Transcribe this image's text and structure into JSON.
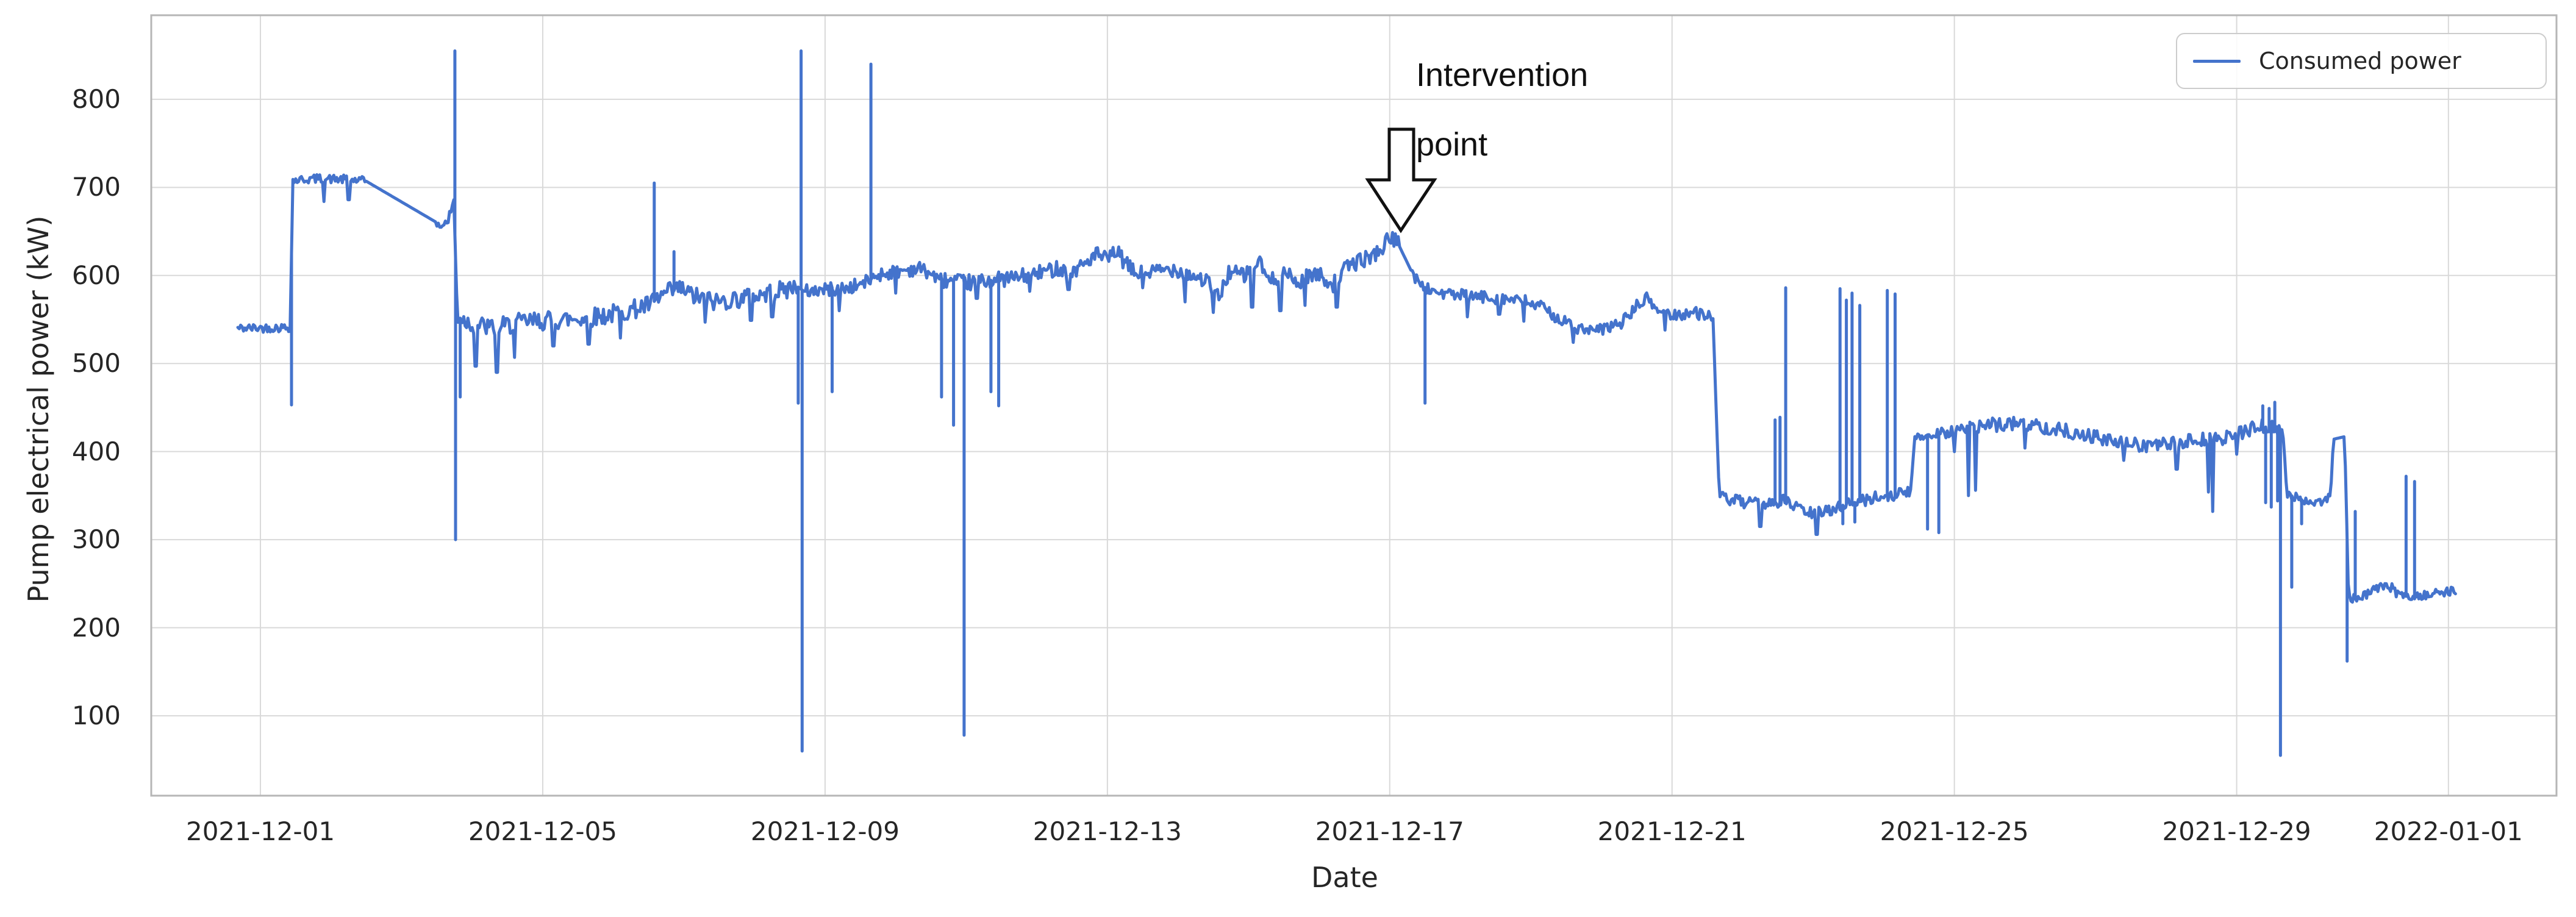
{
  "figure": {
    "background": "#ffffff",
    "grid_color": "#d9d9d9",
    "spine_color": "#b6b6b6",
    "text_color": "#262626"
  },
  "chart_data": {
    "type": "line",
    "title": "",
    "xlabel": "Date",
    "ylabel": "Pump electrical power (kW)",
    "legend": {
      "entries": [
        "Consumed power"
      ],
      "position": "upper right"
    },
    "grid": true,
    "x_epoch": "2021-12-01",
    "x_tick_labels": [
      "2021-12-01",
      "2021-12-05",
      "2021-12-09",
      "2021-12-13",
      "2021-12-17",
      "2021-12-21",
      "2021-12-25",
      "2021-12-29",
      "2022-01-01"
    ],
    "x_tick_days": [
      0,
      4,
      8,
      12,
      16,
      20,
      24,
      28,
      31
    ],
    "y_ticks": [
      100,
      200,
      300,
      400,
      500,
      600,
      700,
      800
    ],
    "ylim": [
      9.3,
      895.5
    ],
    "xlim_days": [
      -1.547,
      32.531
    ],
    "annotation": {
      "lines": [
        "Intervention",
        "point"
      ],
      "arrow_day": 16.05,
      "arrow_points_to_kw": 650
    },
    "series": [
      {
        "name": "Consumed power",
        "color": "#4473cc",
        "units": "kW",
        "sample_step_days": 0.02,
        "noise_seed": 42,
        "keyframes": [
          [
            -0.32,
            540
          ],
          [
            0.435,
            541
          ],
          [
            0.445,
            708
          ],
          [
            0.8,
            710
          ],
          [
            1.2,
            709
          ],
          [
            1.5,
            707
          ],
          [
            2.5,
            660
          ],
          [
            2.56,
            656
          ],
          [
            2.66,
            662
          ],
          [
            2.74,
            686
          ],
          [
            2.79,
            553
          ],
          [
            3.0,
            545
          ],
          [
            3.3,
            540
          ],
          [
            3.7,
            547
          ],
          [
            4.1,
            549
          ],
          [
            4.5,
            551
          ],
          [
            4.9,
            555
          ],
          [
            5.2,
            560
          ],
          [
            5.5,
            566
          ],
          [
            5.75,
            580
          ],
          [
            5.95,
            585
          ],
          [
            6.15,
            576
          ],
          [
            6.45,
            570
          ],
          [
            6.8,
            574
          ],
          [
            7.1,
            578
          ],
          [
            7.35,
            582
          ],
          [
            7.6,
            588
          ],
          [
            7.7,
            582
          ],
          [
            8.0,
            584
          ],
          [
            8.35,
            586
          ],
          [
            8.6,
            593
          ],
          [
            8.75,
            601
          ],
          [
            9.1,
            606
          ],
          [
            9.35,
            608
          ],
          [
            9.5,
            602
          ],
          [
            9.62,
            596
          ],
          [
            9.9,
            592
          ],
          [
            10.1,
            592
          ],
          [
            10.4,
            595
          ],
          [
            10.75,
            598
          ],
          [
            11.05,
            603
          ],
          [
            11.3,
            609
          ],
          [
            11.5,
            604
          ],
          [
            11.68,
            614
          ],
          [
            11.85,
            624
          ],
          [
            12.0,
            617
          ],
          [
            12.12,
            628
          ],
          [
            12.25,
            614
          ],
          [
            12.4,
            602
          ],
          [
            12.65,
            604
          ],
          [
            12.95,
            608
          ],
          [
            13.2,
            600
          ],
          [
            13.4,
            594
          ],
          [
            13.58,
            574
          ],
          [
            13.72,
            604
          ],
          [
            13.95,
            600
          ],
          [
            14.15,
            616
          ],
          [
            14.3,
            592
          ],
          [
            14.5,
            604
          ],
          [
            14.7,
            590
          ],
          [
            14.87,
            602
          ],
          [
            15.05,
            599
          ],
          [
            15.2,
            590
          ],
          [
            15.4,
            610
          ],
          [
            15.55,
            616
          ],
          [
            15.72,
            621
          ],
          [
            15.88,
            630
          ],
          [
            16.02,
            645
          ],
          [
            16.12,
            636
          ],
          [
            16.3,
            606
          ],
          [
            16.42,
            590
          ],
          [
            16.55,
            584
          ],
          [
            16.8,
            579
          ],
          [
            17.2,
            576
          ],
          [
            17.6,
            574
          ],
          [
            17.95,
            570
          ],
          [
            18.2,
            562
          ],
          [
            18.45,
            548
          ],
          [
            18.7,
            539
          ],
          [
            18.9,
            536
          ],
          [
            19.1,
            541
          ],
          [
            19.3,
            547
          ],
          [
            19.5,
            565
          ],
          [
            19.65,
            574
          ],
          [
            19.8,
            560
          ],
          [
            20.0,
            555
          ],
          [
            20.2,
            557
          ],
          [
            20.4,
            557
          ],
          [
            20.58,
            554
          ],
          [
            20.63,
            436
          ],
          [
            20.67,
            349
          ],
          [
            20.9,
            344
          ],
          [
            21.15,
            340
          ],
          [
            21.4,
            343
          ],
          [
            21.6,
            344
          ],
          [
            21.8,
            335
          ],
          [
            22.0,
            329
          ],
          [
            22.2,
            333
          ],
          [
            22.45,
            340
          ],
          [
            22.7,
            344
          ],
          [
            22.95,
            349
          ],
          [
            23.2,
            352
          ],
          [
            23.38,
            354
          ],
          [
            23.44,
            417
          ],
          [
            23.7,
            420
          ],
          [
            24.1,
            425
          ],
          [
            24.5,
            430
          ],
          [
            24.85,
            432
          ],
          [
            25.2,
            429
          ],
          [
            25.55,
            424
          ],
          [
            25.9,
            418
          ],
          [
            26.2,
            412
          ],
          [
            26.5,
            408
          ],
          [
            26.85,
            407
          ],
          [
            27.1,
            409
          ],
          [
            27.45,
            413
          ],
          [
            27.75,
            414
          ],
          [
            28.05,
            421
          ],
          [
            28.3,
            429
          ],
          [
            28.5,
            427
          ],
          [
            28.66,
            421
          ],
          [
            28.71,
            352
          ],
          [
            28.9,
            346
          ],
          [
            29.05,
            342
          ],
          [
            29.2,
            344
          ],
          [
            29.33,
            349
          ],
          [
            29.37,
            414
          ],
          [
            29.53,
            417
          ],
          [
            29.585,
            233
          ],
          [
            29.75,
            234
          ],
          [
            29.95,
            243
          ],
          [
            30.1,
            247
          ],
          [
            30.25,
            240
          ],
          [
            30.45,
            236
          ],
          [
            30.65,
            237
          ],
          [
            30.85,
            239
          ],
          [
            31.0,
            241
          ],
          [
            31.1,
            243
          ]
        ],
        "noise_segments": [
          [
            -0.32,
            0.435,
            5
          ],
          [
            0.445,
            1.5,
            5
          ],
          [
            2.5,
            2.74,
            6
          ],
          [
            2.79,
            7.6,
            11
          ],
          [
            7.7,
            9.6,
            8
          ],
          [
            9.62,
            16.12,
            9
          ],
          [
            16.3,
            20.58,
            7
          ],
          [
            20.67,
            23.38,
            7
          ],
          [
            23.44,
            28.66,
            8
          ],
          [
            28.71,
            29.33,
            5
          ],
          [
            29.585,
            31.1,
            5
          ]
        ],
        "dips": [
          [
            0.9,
            684
          ],
          [
            1.25,
            686
          ],
          [
            3.05,
            497
          ],
          [
            3.35,
            490
          ],
          [
            3.6,
            507
          ],
          [
            4.15,
            520
          ],
          [
            4.65,
            522
          ],
          [
            5.1,
            529
          ],
          [
            6.3,
            547
          ],
          [
            6.95,
            549
          ],
          [
            7.25,
            553
          ],
          [
            8.2,
            560
          ],
          [
            9.0,
            580
          ],
          [
            10.15,
            574
          ],
          [
            10.9,
            582
          ],
          [
            11.45,
            584
          ],
          [
            12.5,
            586
          ],
          [
            13.1,
            570
          ],
          [
            13.5,
            558
          ],
          [
            14.05,
            564
          ],
          [
            14.45,
            560
          ],
          [
            14.8,
            566
          ],
          [
            15.25,
            564
          ],
          [
            17.1,
            553
          ],
          [
            17.55,
            556
          ],
          [
            17.9,
            548
          ],
          [
            18.6,
            524
          ],
          [
            19.9,
            538
          ],
          [
            21.25,
            315
          ],
          [
            22.05,
            306
          ],
          [
            24.0,
            400
          ],
          [
            24.2,
            350
          ],
          [
            24.3,
            356
          ],
          [
            25.0,
            404
          ],
          [
            26.4,
            390
          ],
          [
            27.15,
            380
          ],
          [
            27.6,
            354
          ],
          [
            27.66,
            332
          ],
          [
            28.0,
            397
          ],
          [
            30.2,
            250
          ]
        ],
        "spikes": [
          [
            0.44,
            453
          ],
          [
            2.755,
            855
          ],
          [
            2.765,
            300
          ],
          [
            2.83,
            462
          ],
          [
            5.58,
            705
          ],
          [
            5.86,
            627
          ],
          [
            7.62,
            455
          ],
          [
            7.66,
            855
          ],
          [
            7.675,
            60
          ],
          [
            8.1,
            468
          ],
          [
            8.65,
            840
          ],
          [
            9.65,
            462
          ],
          [
            9.82,
            430
          ],
          [
            9.97,
            78
          ],
          [
            10.35,
            468
          ],
          [
            10.46,
            452
          ],
          [
            16.5,
            455
          ],
          [
            21.46,
            436
          ],
          [
            21.53,
            439
          ],
          [
            21.61,
            586
          ],
          [
            22.38,
            585
          ],
          [
            22.42,
            318
          ],
          [
            22.47,
            572
          ],
          [
            22.55,
            580
          ],
          [
            22.59,
            320
          ],
          [
            22.66,
            566
          ],
          [
            23.05,
            583
          ],
          [
            23.16,
            579
          ],
          [
            23.62,
            312
          ],
          [
            23.78,
            308
          ],
          [
            28.37,
            452
          ],
          [
            28.41,
            342
          ],
          [
            28.46,
            449
          ],
          [
            28.49,
            337
          ],
          [
            28.54,
            456
          ],
          [
            28.58,
            344
          ],
          [
            28.62,
            55
          ],
          [
            28.78,
            246
          ],
          [
            28.92,
            318
          ],
          [
            29.565,
            162
          ],
          [
            29.68,
            332
          ],
          [
            30.4,
            372
          ],
          [
            30.52,
            366
          ]
        ]
      }
    ]
  }
}
